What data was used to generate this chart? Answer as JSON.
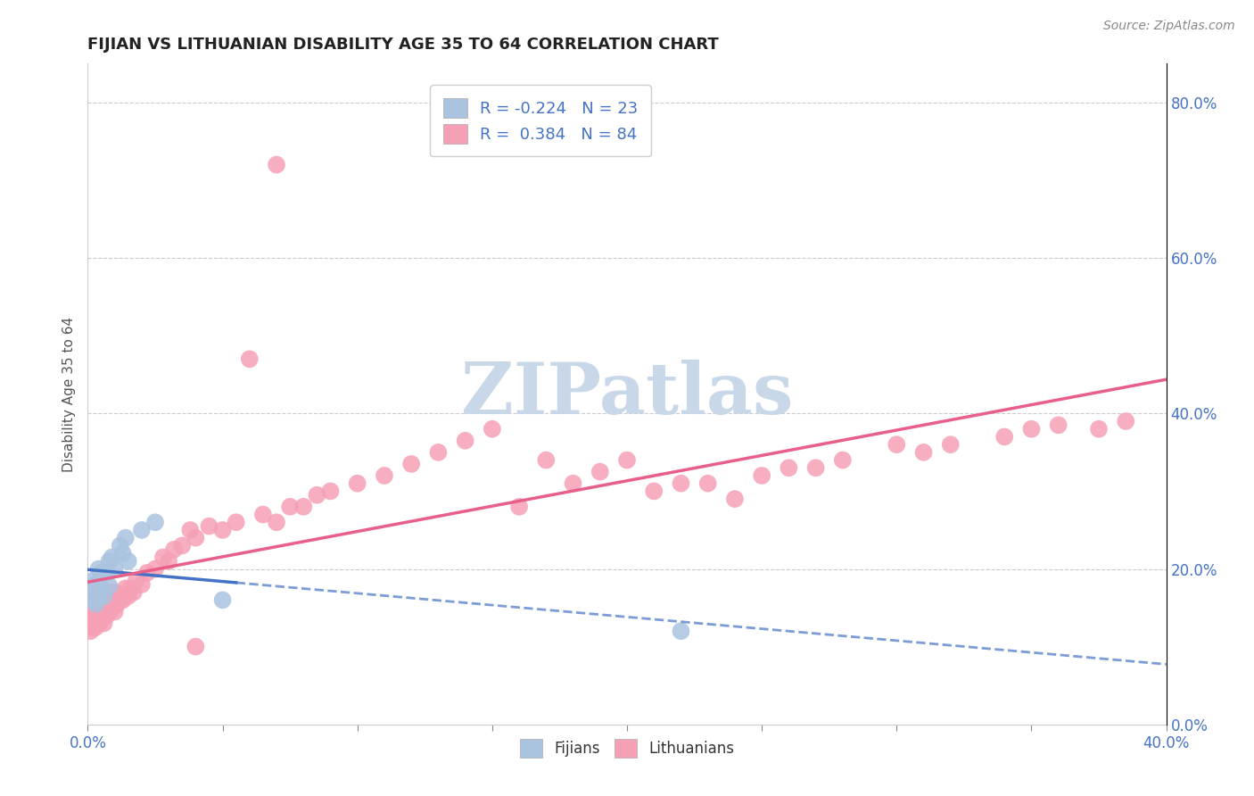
{
  "title": "FIJIAN VS LITHUANIAN DISABILITY AGE 35 TO 64 CORRELATION CHART",
  "source": "Source: ZipAtlas.com",
  "ylabel": "Disability Age 35 to 64",
  "ylabel_right_ticks": [
    "0.0%",
    "20.0%",
    "40.0%",
    "60.0%",
    "80.0%"
  ],
  "ylabel_right_vals": [
    0.0,
    0.2,
    0.4,
    0.6,
    0.8
  ],
  "xmin": 0.0,
  "xmax": 0.4,
  "ymin": 0.0,
  "ymax": 0.85,
  "fijian_R": -0.224,
  "fijian_N": 23,
  "lithuanian_R": 0.384,
  "lithuanian_N": 84,
  "fijian_color": "#aac4e0",
  "lithuanian_color": "#f5a0b5",
  "fijian_line_color": "#4472c4",
  "lithuanian_line_color": "#e8608a",
  "background_color": "#ffffff",
  "grid_color": "#cccccc",
  "title_color": "#222222",
  "axis_label_color": "#4472c4",
  "watermark_color": "#c8d8e8",
  "fijians_x": [
    0.001,
    0.002,
    0.002,
    0.003,
    0.003,
    0.004,
    0.004,
    0.005,
    0.005,
    0.006,
    0.007,
    0.008,
    0.008,
    0.009,
    0.01,
    0.012,
    0.013,
    0.014,
    0.015,
    0.02,
    0.025,
    0.05,
    0.22
  ],
  "fijians_y": [
    0.175,
    0.16,
    0.185,
    0.155,
    0.18,
    0.165,
    0.2,
    0.175,
    0.195,
    0.165,
    0.195,
    0.178,
    0.21,
    0.215,
    0.2,
    0.23,
    0.22,
    0.24,
    0.21,
    0.25,
    0.26,
    0.16,
    0.12
  ],
  "lithuanians_x": [
    0.001,
    0.001,
    0.001,
    0.002,
    0.002,
    0.002,
    0.002,
    0.003,
    0.003,
    0.003,
    0.003,
    0.004,
    0.004,
    0.004,
    0.005,
    0.005,
    0.005,
    0.006,
    0.006,
    0.006,
    0.007,
    0.007,
    0.008,
    0.008,
    0.009,
    0.009,
    0.01,
    0.01,
    0.011,
    0.012,
    0.013,
    0.014,
    0.015,
    0.016,
    0.017,
    0.018,
    0.02,
    0.022,
    0.025,
    0.028,
    0.03,
    0.032,
    0.035,
    0.038,
    0.04,
    0.045,
    0.05,
    0.055,
    0.06,
    0.065,
    0.07,
    0.075,
    0.08,
    0.085,
    0.09,
    0.1,
    0.11,
    0.12,
    0.13,
    0.14,
    0.15,
    0.16,
    0.17,
    0.18,
    0.19,
    0.2,
    0.21,
    0.22,
    0.23,
    0.24,
    0.25,
    0.26,
    0.27,
    0.28,
    0.3,
    0.31,
    0.32,
    0.34,
    0.35,
    0.36,
    0.375,
    0.385,
    0.04,
    0.07
  ],
  "lithuanians_y": [
    0.12,
    0.14,
    0.155,
    0.125,
    0.14,
    0.155,
    0.165,
    0.125,
    0.14,
    0.155,
    0.165,
    0.13,
    0.145,
    0.165,
    0.135,
    0.15,
    0.165,
    0.13,
    0.15,
    0.165,
    0.14,
    0.165,
    0.145,
    0.165,
    0.15,
    0.17,
    0.145,
    0.17,
    0.155,
    0.165,
    0.16,
    0.175,
    0.165,
    0.175,
    0.17,
    0.185,
    0.18,
    0.195,
    0.2,
    0.215,
    0.21,
    0.225,
    0.23,
    0.25,
    0.24,
    0.255,
    0.25,
    0.26,
    0.47,
    0.27,
    0.26,
    0.28,
    0.28,
    0.295,
    0.3,
    0.31,
    0.32,
    0.335,
    0.35,
    0.365,
    0.38,
    0.28,
    0.34,
    0.31,
    0.325,
    0.34,
    0.3,
    0.31,
    0.31,
    0.29,
    0.32,
    0.33,
    0.33,
    0.34,
    0.36,
    0.35,
    0.36,
    0.37,
    0.38,
    0.385,
    0.38,
    0.39,
    0.1,
    0.72
  ]
}
